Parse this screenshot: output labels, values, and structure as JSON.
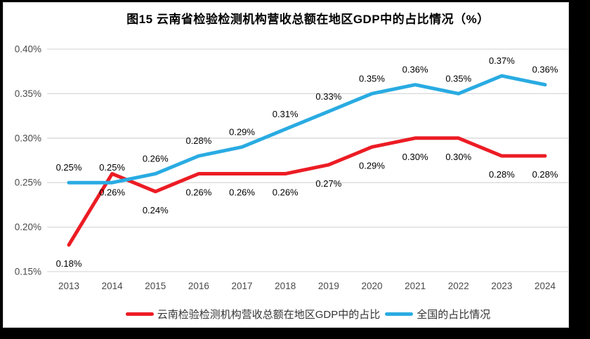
{
  "title": "图15 云南省检验检测机构营收总额在地区GDP中的占比情况（%）",
  "colors": {
    "yunnan_red": "#EC1C24",
    "national_blue": "#29ABE2",
    "gridline": "#D9D9D9",
    "axis_text": "#4A4A4A",
    "data_label_text": "#000000",
    "frame": "#000000",
    "panel_background": "#FFFFFF"
  },
  "chart_data": {
    "type": "line",
    "title": "图15 云南省检验检测机构营收总额在地区GDP中的占比情况（%）",
    "categories": [
      "2013",
      "2014",
      "2015",
      "2016",
      "2017",
      "2018",
      "2019",
      "2020",
      "2021",
      "2022",
      "2023",
      "2024"
    ],
    "series": [
      {
        "name": "云南检验检测机构营收总额在地区GDP中的占比",
        "color": "#EC1C24",
        "values": [
          0.18,
          0.26,
          0.24,
          0.26,
          0.26,
          0.26,
          0.27,
          0.29,
          0.3,
          0.3,
          0.28,
          0.28
        ],
        "labels": [
          "0.18%",
          "0.26%",
          "0.24%",
          "0.26%",
          "0.26%",
          "0.26%",
          "0.27%",
          "0.29%",
          "0.30%",
          "0.30%",
          "0.28%",
          "0.28%"
        ],
        "label_position": "below"
      },
      {
        "name": "全国的占比情况",
        "color": "#29ABE2",
        "values": [
          0.25,
          0.25,
          0.26,
          0.28,
          0.29,
          0.31,
          0.33,
          0.35,
          0.36,
          0.35,
          0.37,
          0.36
        ],
        "labels": [
          "0.25%",
          "0.25%",
          "0.26%",
          "0.28%",
          "0.29%",
          "0.31%",
          "0.33%",
          "0.35%",
          "0.36%",
          "0.35%",
          "0.37%",
          "0.36%"
        ],
        "label_position": "above"
      }
    ],
    "xlabel": "",
    "ylabel": "",
    "y_axis": {
      "min": 0.15,
      "max": 0.4,
      "step": 0.05,
      "tick_labels": [
        "0.15%",
        "0.20%",
        "0.25%",
        "0.30%",
        "0.35%",
        "0.40%"
      ]
    },
    "grid": true,
    "legend_position": "bottom",
    "unit": "percent"
  }
}
